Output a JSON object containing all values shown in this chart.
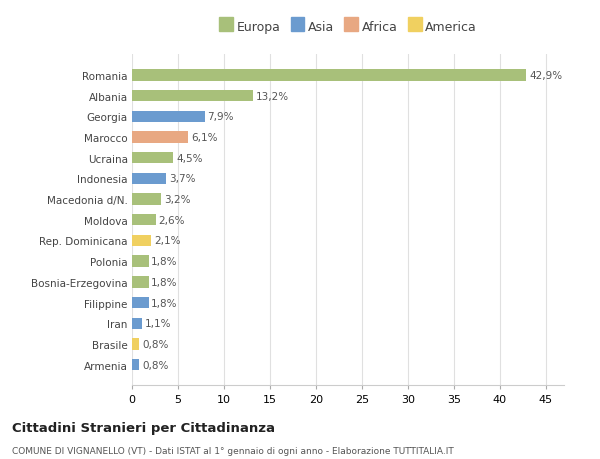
{
  "countries": [
    "Romania",
    "Albania",
    "Georgia",
    "Marocco",
    "Ucraina",
    "Indonesia",
    "Macedonia d/N.",
    "Moldova",
    "Rep. Dominicana",
    "Polonia",
    "Bosnia-Erzegovina",
    "Filippine",
    "Iran",
    "Brasile",
    "Armenia"
  ],
  "values": [
    42.9,
    13.2,
    7.9,
    6.1,
    4.5,
    3.7,
    3.2,
    2.6,
    2.1,
    1.8,
    1.8,
    1.8,
    1.1,
    0.8,
    0.8
  ],
  "labels": [
    "42,9%",
    "13,2%",
    "7,9%",
    "6,1%",
    "4,5%",
    "3,7%",
    "3,2%",
    "2,6%",
    "2,1%",
    "1,8%",
    "1,8%",
    "1,8%",
    "1,1%",
    "0,8%",
    "0,8%"
  ],
  "colors": [
    "#a8c07a",
    "#a8c07a",
    "#6b9bcf",
    "#e8a882",
    "#a8c07a",
    "#6b9bcf",
    "#a8c07a",
    "#a8c07a",
    "#f0d060",
    "#a8c07a",
    "#a8c07a",
    "#6b9bcf",
    "#6b9bcf",
    "#f0d060",
    "#6b9bcf"
  ],
  "legend_labels": [
    "Europa",
    "Asia",
    "Africa",
    "America"
  ],
  "legend_colors": [
    "#a8c07a",
    "#6b9bcf",
    "#e8a882",
    "#f0d060"
  ],
  "title": "Cittadini Stranieri per Cittadinanza",
  "subtitle": "COMUNE DI VIGNANELLO (VT) - Dati ISTAT al 1° gennaio di ogni anno - Elaborazione TUTTITALIA.IT",
  "xlim": [
    0,
    47
  ],
  "xticks": [
    0,
    5,
    10,
    15,
    20,
    25,
    30,
    35,
    40,
    45
  ],
  "background_color": "#ffffff",
  "grid_color": "#e0e0e0",
  "bar_height": 0.55
}
